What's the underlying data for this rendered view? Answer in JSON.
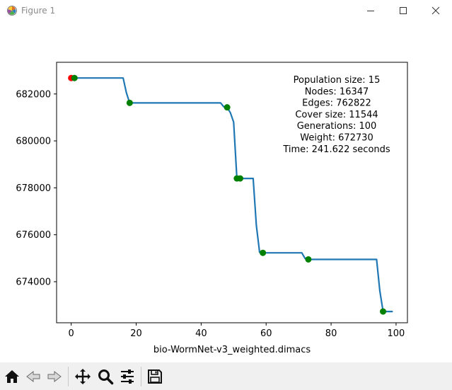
{
  "window": {
    "title": "Figure 1",
    "app_icon": "matplotlib-icon"
  },
  "toolbar": {
    "buttons": [
      {
        "name": "home-button",
        "icon": "home-icon"
      },
      {
        "name": "back-button",
        "icon": "back-arrow-icon"
      },
      {
        "name": "forward-button",
        "icon": "forward-arrow-icon"
      },
      {
        "name": "pan-button",
        "icon": "move-icon"
      },
      {
        "name": "zoom-button",
        "icon": "magnifier-icon"
      },
      {
        "name": "configure-subplots-button",
        "icon": "sliders-icon"
      },
      {
        "name": "save-button",
        "icon": "floppy-disk-icon"
      }
    ]
  },
  "chart_data": {
    "type": "line",
    "title": "",
    "xlabel": "bio-WormNet-v3_weighted.dimacs",
    "ylabel": "",
    "xlim": [
      -4.5,
      103.5
    ],
    "ylim": [
      672250,
      683350
    ],
    "x_ticks": [
      0,
      20,
      40,
      60,
      80,
      100
    ],
    "y_ticks": [
      674000,
      676000,
      678000,
      680000,
      682000
    ],
    "x_tick_labels": [
      "0",
      "20",
      "40",
      "60",
      "80",
      "100"
    ],
    "y_tick_labels": [
      "674000",
      "676000",
      "678000",
      "680000",
      "682000"
    ],
    "grid": false,
    "legend": "none",
    "line_color": "#1f77b4",
    "improvement_marker_color": "#008000",
    "start_marker_color": "#ff0000",
    "series": [
      {
        "x": [
          0,
          16,
          17,
          18,
          46,
          47,
          48,
          49,
          50,
          51,
          52,
          56,
          57,
          58,
          59,
          71,
          72,
          73,
          94,
          95,
          96,
          99
        ],
        "y": [
          682680,
          682680,
          682050,
          681620,
          681620,
          681450,
          681430,
          681200,
          680800,
          678400,
          678400,
          678400,
          676400,
          675250,
          675230,
          675230,
          674990,
          674950,
          674950,
          673600,
          672730,
          672730
        ]
      }
    ],
    "improvement_points": {
      "x": [
        1,
        18,
        48,
        51,
        52,
        59,
        73,
        96
      ],
      "y": [
        682680,
        681620,
        681430,
        678400,
        678400,
        675230,
        674950,
        672730
      ]
    },
    "start_point": {
      "x": 0,
      "y": 682680
    },
    "annotation_lines": [
      "Population size: 15",
      "Nodes: 16347",
      "Edges: 762822",
      "Cover size: 11544",
      "Generations: 100",
      "Weight: 672730",
      "Time: 241.622 seconds"
    ]
  }
}
